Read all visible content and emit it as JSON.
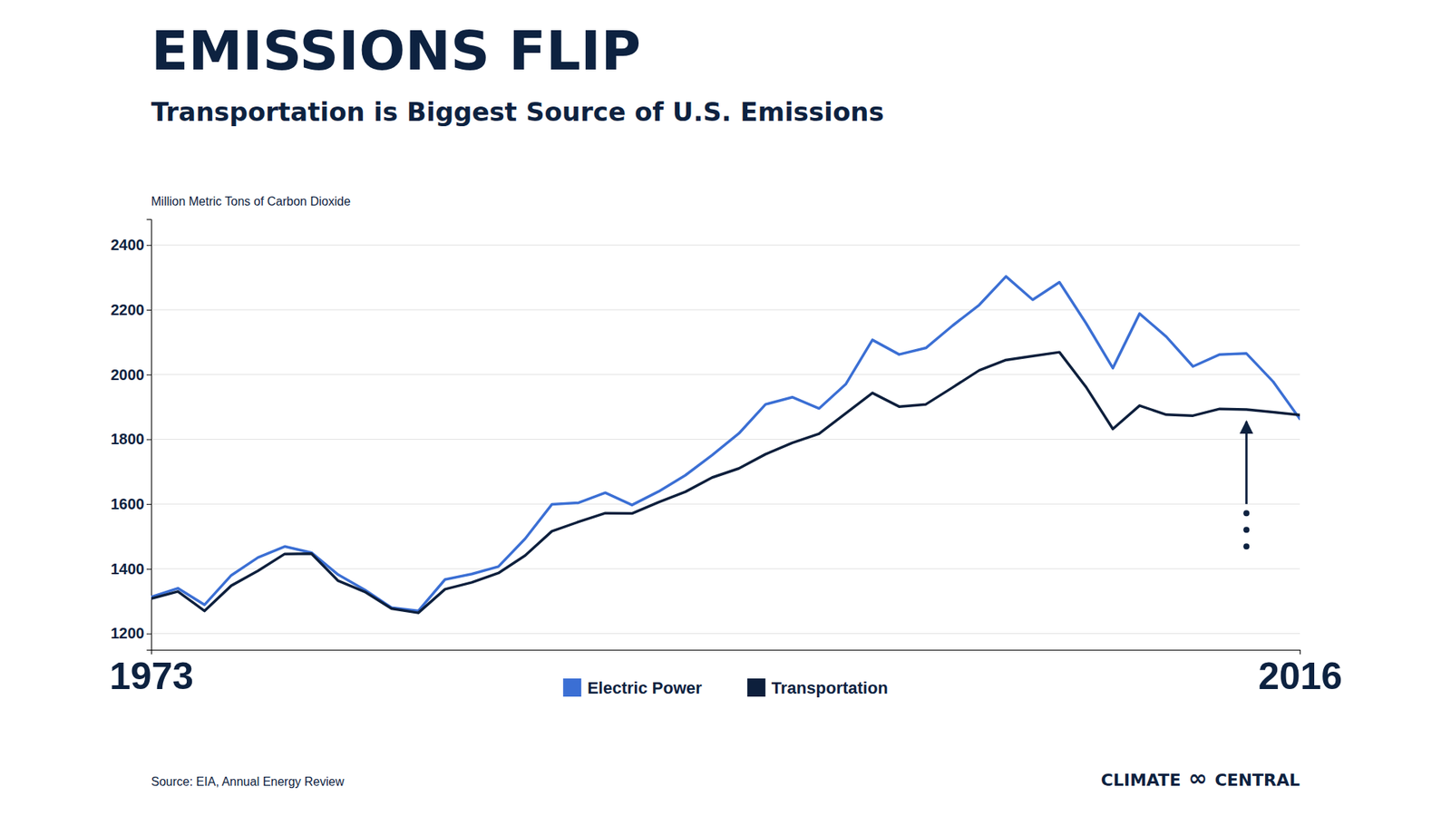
{
  "chart_data": {
    "type": "line",
    "title": "EMISSIONS FLIP",
    "subtitle": "Transportation is Biggest Source of U.S. Emissions",
    "y_label": "Million Metric Tons of Carbon Dioxide",
    "source": "Source: EIA, Annual Energy Review",
    "logo": [
      "CLIMATE",
      "∞",
      "CENTRAL"
    ],
    "x": [
      1973,
      1974,
      1975,
      1976,
      1977,
      1978,
      1979,
      1980,
      1981,
      1982,
      1983,
      1984,
      1985,
      1986,
      1987,
      1988,
      1989,
      1990,
      1991,
      1992,
      1993,
      1994,
      1995,
      1996,
      1997,
      1998,
      1999,
      2000,
      2001,
      2002,
      2003,
      2004,
      2005,
      2006,
      2007,
      2008,
      2009,
      2010,
      2011,
      2012,
      2013,
      2014,
      2015,
      2016
    ],
    "series": [
      {
        "name": "Electric Power",
        "color": "#3b6fd4",
        "values": [
          1313,
          1340,
          1289,
          1380,
          1435,
          1469,
          1450,
          1382,
          1335,
          1280,
          1270,
          1367,
          1384,
          1407,
          1493,
          1599,
          1604,
          1635,
          1597,
          1639,
          1689,
          1751,
          1818,
          1908,
          1930,
          1895,
          1970,
          2107,
          2062,
          2082,
          2151,
          2215,
          2303,
          2231,
          2285,
          2158,
          2020,
          2188,
          2117,
          2025,
          2062,
          2065,
          1978,
          1863
        ]
      },
      {
        "name": "Transportation",
        "color": "#0d1f3c",
        "values": [
          1308,
          1330,
          1270,
          1348,
          1394,
          1446,
          1447,
          1363,
          1329,
          1277,
          1264,
          1337,
          1358,
          1387,
          1441,
          1516,
          1545,
          1572,
          1571,
          1606,
          1638,
          1682,
          1710,
          1754,
          1789,
          1817,
          1880,
          1943,
          1901,
          1908,
          1960,
          2013,
          2045,
          2057,
          2069,
          1961,
          1832,
          1904,
          1876,
          1873,
          1894,
          1892,
          1884,
          1875
        ]
      }
    ],
    "xlim": [
      1973,
      2016
    ],
    "xticks": [
      1973,
      2016
    ],
    "ylim": [
      1150,
      2480
    ],
    "yticks": [
      1200,
      1400,
      1600,
      1800,
      2000,
      2200,
      2400
    ],
    "grid": true,
    "legend": "bottom",
    "annotations": [
      {
        "type": "arrow",
        "x": 2014,
        "y": 1855,
        "y_from": 1600
      }
    ]
  }
}
